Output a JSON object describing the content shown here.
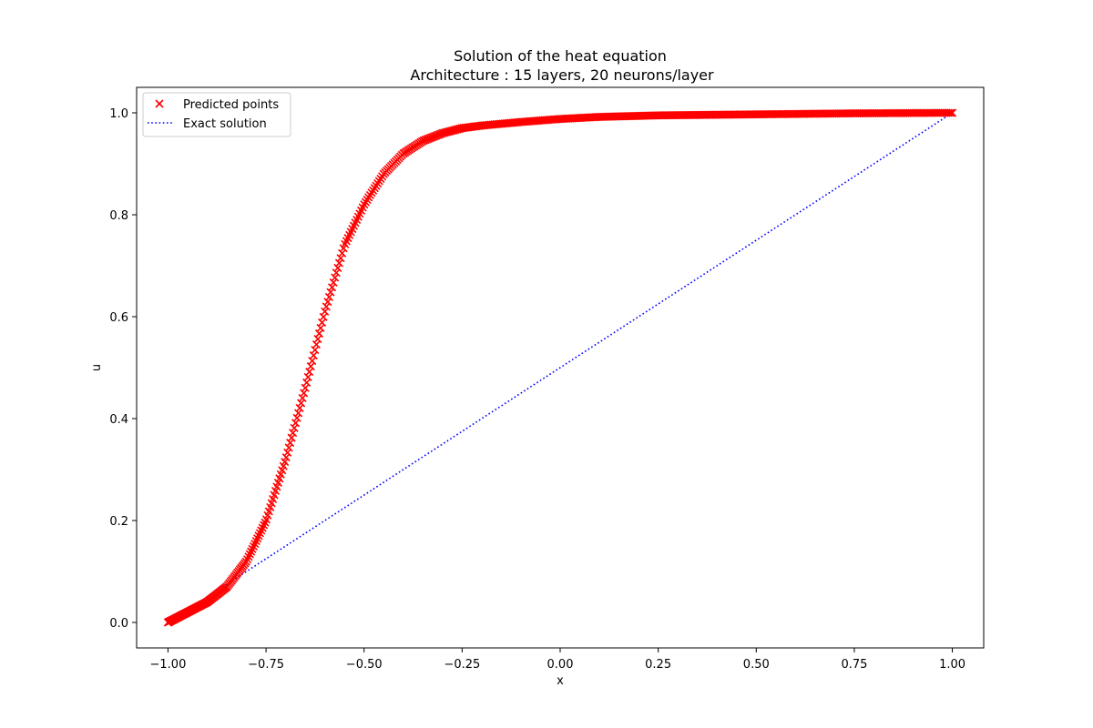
{
  "chart_data": {
    "type": "scatter",
    "title": "Solution of the heat equation",
    "subtitle": "Architecture : 15 layers, 20 neurons/layer",
    "xlabel": "x",
    "ylabel": "u",
    "xlim": [
      -1.08,
      1.08
    ],
    "ylim": [
      -0.05,
      1.05
    ],
    "xticks": [
      -1.0,
      -0.75,
      -0.5,
      -0.25,
      0.0,
      0.25,
      0.5,
      0.75,
      1.0
    ],
    "xtick_labels": [
      "−1.00",
      "−0.75",
      "−0.50",
      "−0.25",
      "0.00",
      "0.25",
      "0.50",
      "0.75",
      "1.00"
    ],
    "yticks": [
      0.0,
      0.2,
      0.4,
      0.6,
      0.8,
      1.0
    ],
    "ytick_labels": [
      "0.0",
      "0.2",
      "0.4",
      "0.6",
      "0.8",
      "1.0"
    ],
    "grid": false,
    "legend_position": "upper-left",
    "series": [
      {
        "name": "Predicted points",
        "kind": "scatter",
        "marker": "x",
        "color": "#ff0000",
        "x": [
          -1.0,
          -0.95,
          -0.9,
          -0.85,
          -0.8,
          -0.75,
          -0.7,
          -0.65,
          -0.6,
          -0.55,
          -0.5,
          -0.45,
          -0.4,
          -0.35,
          -0.3,
          -0.25,
          -0.2,
          -0.1,
          0.0,
          0.1,
          0.25,
          0.5,
          0.75,
          1.0
        ],
        "y": [
          0.0,
          0.02,
          0.04,
          0.07,
          0.12,
          0.2,
          0.32,
          0.46,
          0.61,
          0.74,
          0.82,
          0.88,
          0.92,
          0.945,
          0.96,
          0.97,
          0.975,
          0.982,
          0.988,
          0.992,
          0.995,
          0.997,
          0.999,
          1.0
        ]
      },
      {
        "name": "Exact solution",
        "kind": "line",
        "linestyle": "dotted",
        "color": "#0000ff",
        "x": [
          -1.0,
          1.0
        ],
        "y": [
          0.0,
          1.0
        ]
      }
    ]
  }
}
